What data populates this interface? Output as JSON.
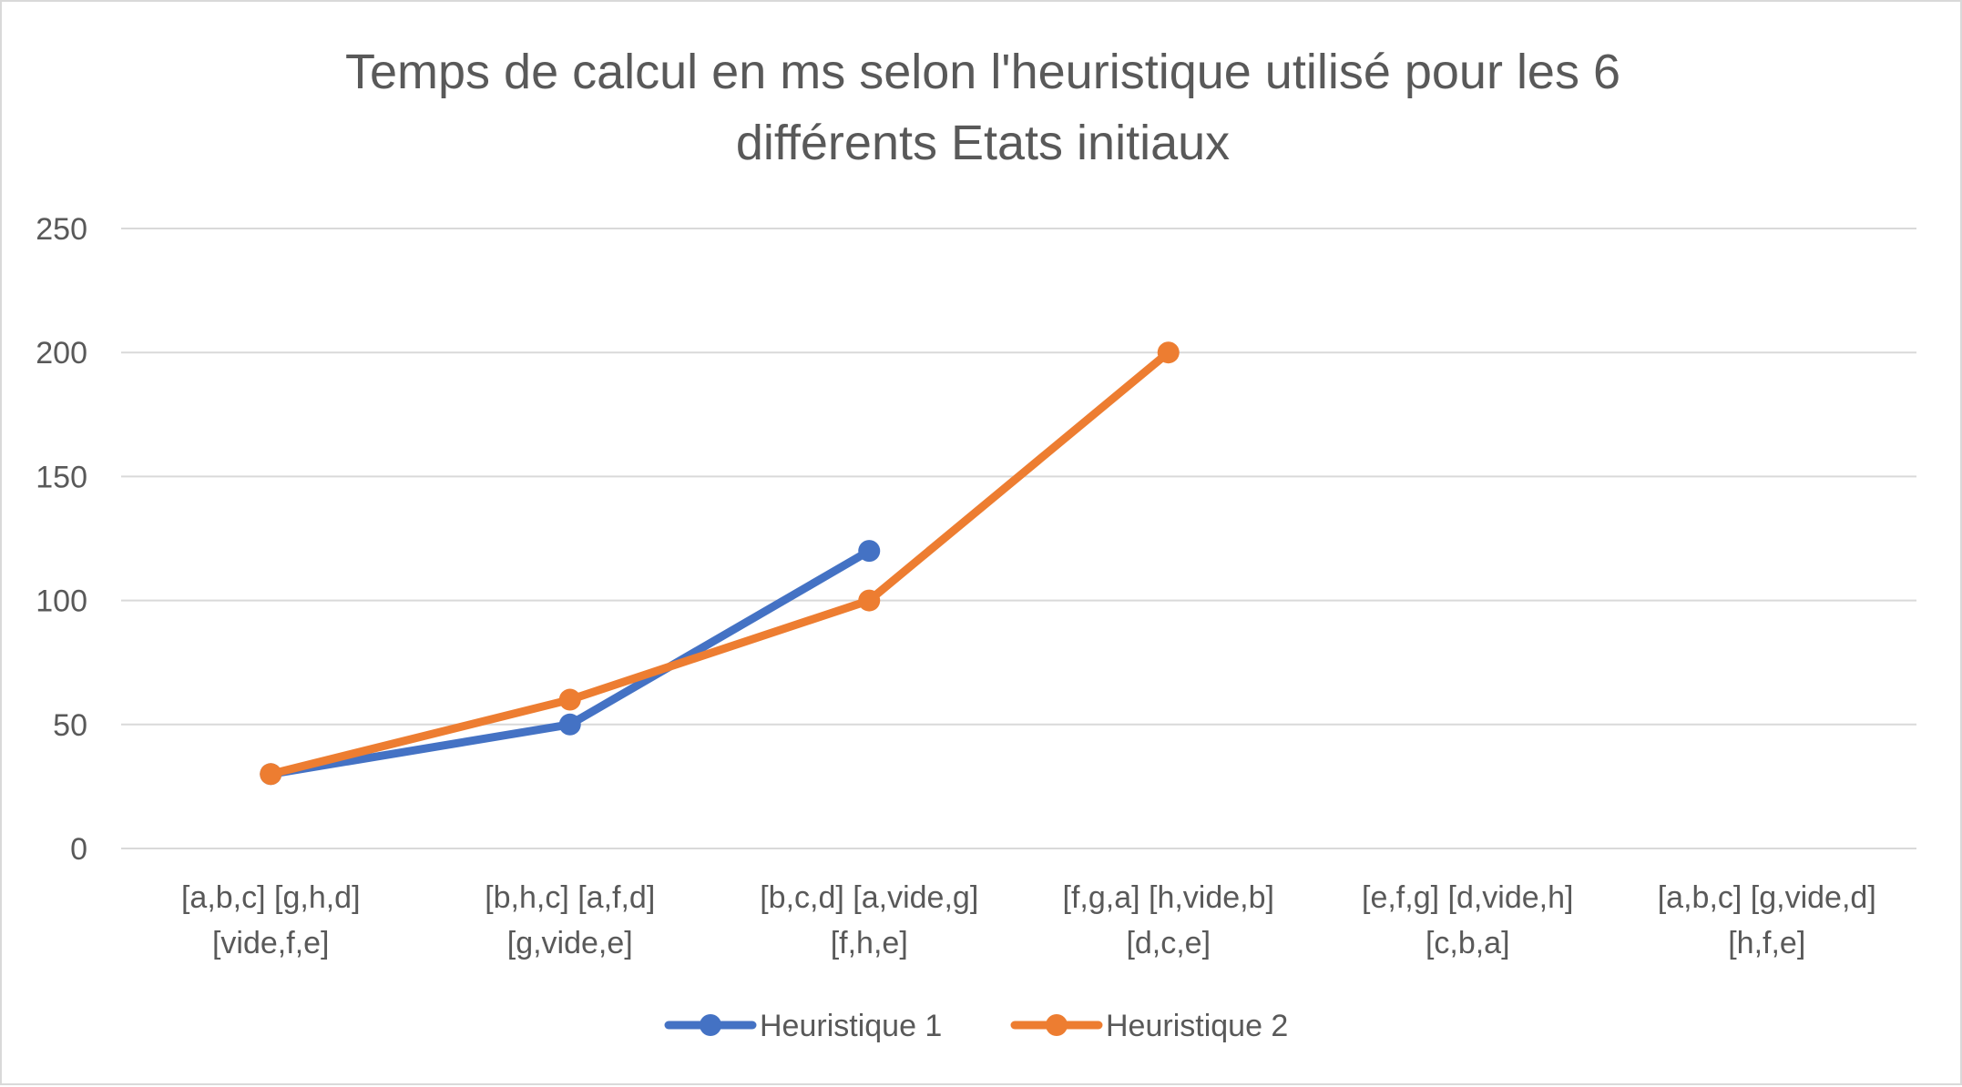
{
  "chart_data": {
    "type": "line",
    "title_lines": [
      "Temps de calcul en ms selon l'heuristique utilisé pour les 6",
      "différents Etats initiaux"
    ],
    "categories": [
      [
        "[a,b,c] [g,h,d]",
        "[vide,f,e]"
      ],
      [
        "[b,h,c] [a,f,d]",
        "[g,vide,e]"
      ],
      [
        "[b,c,d] [a,vide,g]",
        "[f,h,e]"
      ],
      [
        "[f,g,a] [h,vide,b]",
        "[d,c,e]"
      ],
      [
        "[e,f,g] [d,vide,h]",
        "[c,b,a]"
      ],
      [
        "[a,b,c] [g,vide,d]",
        "[h,f,e]"
      ]
    ],
    "ylim": [
      0,
      250
    ],
    "yticks": [
      0,
      50,
      100,
      150,
      200,
      250
    ],
    "grid": true,
    "legend_position": "bottom",
    "series": [
      {
        "name": "Heuristique 1",
        "color": "#4472c4",
        "values": [
          30,
          50,
          120,
          null,
          null,
          null
        ]
      },
      {
        "name": "Heuristique 2",
        "color": "#ed7d31",
        "values": [
          30,
          60,
          100,
          200,
          null,
          null
        ]
      }
    ]
  }
}
